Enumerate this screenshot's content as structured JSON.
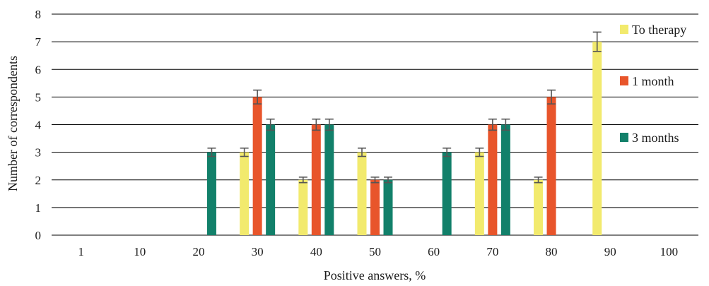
{
  "chart_data": {
    "type": "bar",
    "title": "",
    "xlabel": "Positive answers, %",
    "ylabel": "Number of correspondents",
    "ylim": [
      0,
      8
    ],
    "yticks": [
      "0",
      "1",
      "2",
      "3",
      "4",
      "5",
      "6",
      "7",
      "8"
    ],
    "grid": true,
    "legend_position": "right",
    "error_bars": true,
    "categories": [
      "1",
      "10",
      "20",
      "30",
      "40",
      "50",
      "60",
      "70",
      "80",
      "90",
      "100"
    ],
    "series": [
      {
        "name": "To therapy",
        "color": "#f2ea6d",
        "values": [
          0,
          0,
          0,
          3,
          2,
          3,
          0,
          3,
          2,
          7,
          0
        ],
        "errors": [
          0,
          0,
          0,
          0.15,
          0.1,
          0.15,
          0,
          0.15,
          0.1,
          0.35,
          0
        ]
      },
      {
        "name": "1 month",
        "color": "#e8552b",
        "values": [
          0,
          0,
          0,
          5,
          4,
          2,
          0,
          4,
          5,
          0,
          0
        ],
        "errors": [
          0,
          0,
          0,
          0.25,
          0.2,
          0.1,
          0,
          0.2,
          0.25,
          0,
          0
        ]
      },
      {
        "name": "3 months",
        "color": "#12806a",
        "values": [
          0,
          0,
          3,
          4,
          4,
          2,
          3,
          4,
          0,
          0,
          0
        ],
        "errors": [
          0,
          0,
          0.15,
          0.2,
          0.2,
          0.1,
          0.15,
          0.2,
          0,
          0,
          0
        ]
      }
    ]
  }
}
